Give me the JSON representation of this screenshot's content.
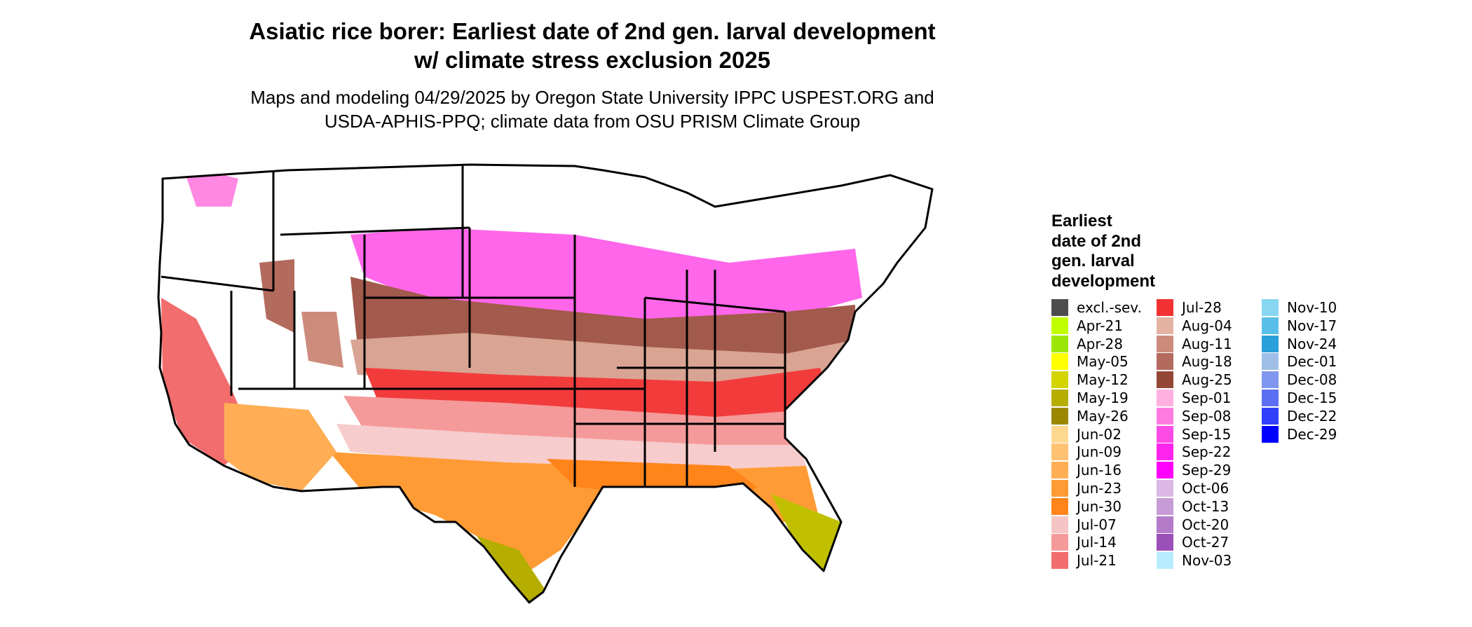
{
  "title_line1": "Asiatic rice borer: Earliest date of 2nd gen. larval development",
  "title_line2": "w/ climate stress exclusion 2025",
  "subtitle_line1": "Maps and modeling 04/29/2025 by Oregon State University IPPC USPEST.ORG and",
  "subtitle_line2": "USDA-APHIS-PPQ; climate data from OSU PRISM Climate Group",
  "legend": {
    "title_lines": [
      "Earliest",
      "date of 2nd",
      "gen. larval",
      "development"
    ],
    "items": [
      {
        "label": "excl.-sev.",
        "color": "#4d4d4d"
      },
      {
        "label": "Apr-21",
        "color": "#c0ff00"
      },
      {
        "label": "Apr-28",
        "color": "#9de60a"
      },
      {
        "label": "May-05",
        "color": "#ffff00"
      },
      {
        "label": "May-12",
        "color": "#d4d400"
      },
      {
        "label": "May-19",
        "color": "#b5ad00"
      },
      {
        "label": "May-26",
        "color": "#9c8700"
      },
      {
        "label": "Jun-02",
        "color": "#ffd890"
      },
      {
        "label": "Jun-09",
        "color": "#ffc272"
      },
      {
        "label": "Jun-16",
        "color": "#ffae55"
      },
      {
        "label": "Jun-23",
        "color": "#ff9b35"
      },
      {
        "label": "Jun-30",
        "color": "#ff8419"
      },
      {
        "label": "Jul-07",
        "color": "#f5c5c5"
      },
      {
        "label": "Jul-14",
        "color": "#f59a9a"
      },
      {
        "label": "Jul-21",
        "color": "#f26d6d"
      },
      {
        "label": "Jul-28",
        "color": "#f23232"
      },
      {
        "label": "Aug-04",
        "color": "#e3b2a2"
      },
      {
        "label": "Aug-11",
        "color": "#cc8c7c"
      },
      {
        "label": "Aug-18",
        "color": "#b36b5e"
      },
      {
        "label": "Aug-25",
        "color": "#944637"
      },
      {
        "label": "Sep-01",
        "color": "#ffb0e0"
      },
      {
        "label": "Sep-08",
        "color": "#ff7be0"
      },
      {
        "label": "Sep-15",
        "color": "#ff4be6"
      },
      {
        "label": "Sep-22",
        "color": "#ff25ee"
      },
      {
        "label": "Sep-29",
        "color": "#ff00ff"
      },
      {
        "label": "Oct-06",
        "color": "#dcb8e6"
      },
      {
        "label": "Oct-13",
        "color": "#c79bd6"
      },
      {
        "label": "Oct-20",
        "color": "#b47bc9"
      },
      {
        "label": "Oct-27",
        "color": "#9b4fb8"
      },
      {
        "label": "Nov-03",
        "color": "#b8ecff"
      },
      {
        "label": "Nov-10",
        "color": "#87d7f2"
      },
      {
        "label": "Nov-17",
        "color": "#58bfe8"
      },
      {
        "label": "Nov-24",
        "color": "#2b9fda"
      },
      {
        "label": "Dec-01",
        "color": "#a0bfe8"
      },
      {
        "label": "Dec-08",
        "color": "#7f97ee"
      },
      {
        "label": "Dec-15",
        "color": "#5b6ef4"
      },
      {
        "label": "Dec-22",
        "color": "#3040fa"
      },
      {
        "label": "Dec-29",
        "color": "#0000ff"
      }
    ]
  }
}
